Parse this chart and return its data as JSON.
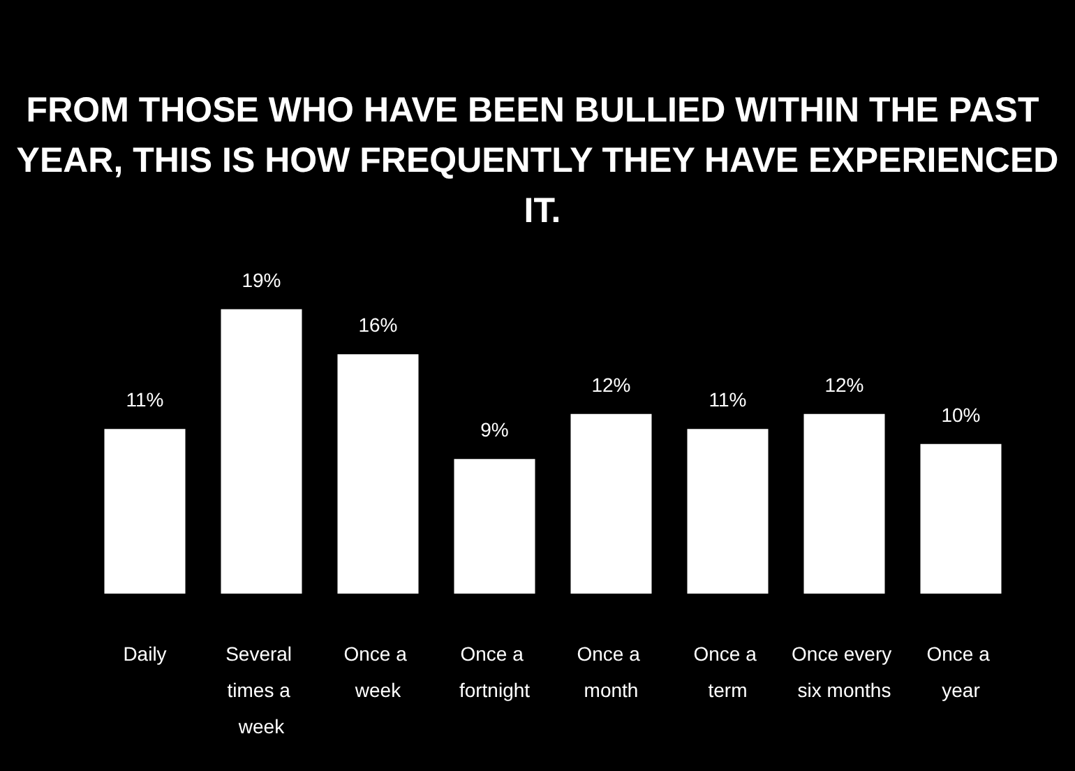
{
  "chart_data": {
    "type": "bar",
    "title": "FROM THOSE WHO HAVE BEEN BULLIED WITHIN THE PAST YEAR, THIS IS HOW FREQUENTLY THEY HAVE EXPERIENCED IT.",
    "categories": [
      "Daily",
      "Several times a week",
      "Once a week",
      "Once a fortnight",
      "Once a month",
      "Once a term",
      "Once every six months",
      "Once a year"
    ],
    "values": [
      11,
      19,
      16,
      9,
      12,
      11,
      12,
      10
    ],
    "value_labels": [
      "11%",
      "19%",
      "16%",
      "9%",
      "12%",
      "11%",
      "12%",
      "10%"
    ],
    "color": "#ffffff"
  }
}
